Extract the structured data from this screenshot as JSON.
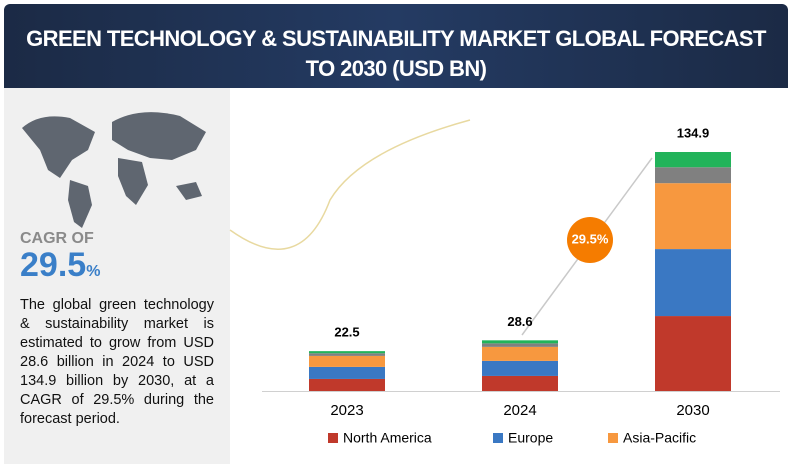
{
  "header": {
    "title": "GREEN TECHNOLOGY & SUSTAINABILITY MARKET GLOBAL FORECAST TO 2030 (USD BN)"
  },
  "sidebar": {
    "cagr_label": "CAGR OF",
    "cagr_value": "29.5",
    "cagr_unit": "%",
    "description": "The global green technology & sustainability market is estimated to grow from USD 28.6 billion in 2024 to USD 134.9 billion by 2030, at a CAGR of 29.5% during the forecast period."
  },
  "chart_data": {
    "type": "stacked_bar",
    "categories": [
      "2023",
      "2024",
      "2030"
    ],
    "series": [
      {
        "name": "North America",
        "color": "#c0392b",
        "values": [
          6.8,
          8.5,
          42.3
        ]
      },
      {
        "name": "Europe",
        "color": "#3a78c3",
        "values": [
          6.8,
          8.5,
          37.8
        ]
      },
      {
        "name": "Asia-Pacific",
        "color": "#f7983f",
        "values": [
          6.2,
          7.9,
          37.2
        ]
      },
      {
        "color": "#808080",
        "values": [
          1.5,
          2.0,
          9.0
        ]
      },
      {
        "color": "#22b35a",
        "values": [
          1.2,
          1.7,
          8.6
        ]
      }
    ],
    "totals": [
      22.5,
      28.6,
      134.9
    ],
    "annotation": "29.5%"
  }
}
